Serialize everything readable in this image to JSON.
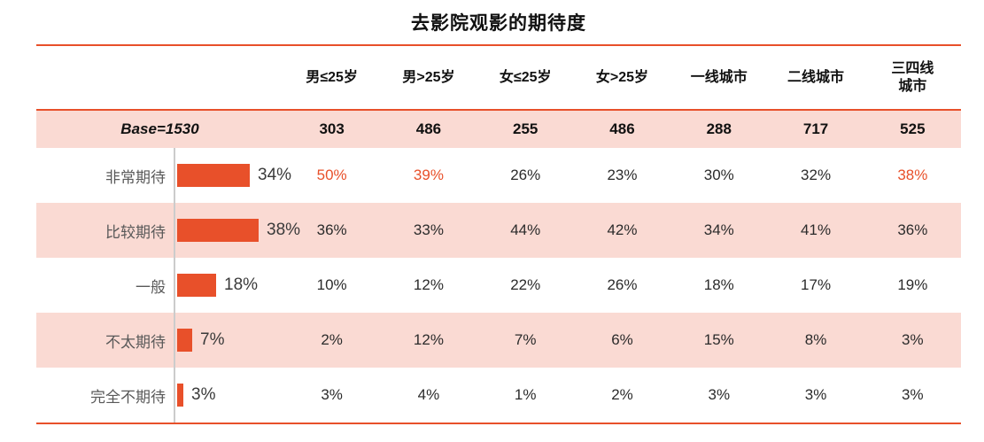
{
  "title": "去影院观影的期待度",
  "colors": {
    "accent": "#E8502A",
    "row_highlight_bg": "#FADAD3",
    "axis_line": "#CCCCCC",
    "label_gray": "#595959",
    "text_dark": "#111111"
  },
  "chart_data": {
    "type": "bar",
    "title": "去影院观影的期待度",
    "orientation": "horizontal",
    "grid": false,
    "legend": false,
    "columns": [
      "男≤25岁",
      "男>25岁",
      "女≤25岁",
      "女>25岁",
      "一线城市",
      "二线城市",
      "三四线城市"
    ],
    "base": {
      "label": "Base=1530",
      "values": [
        "303",
        "486",
        "255",
        "486",
        "288",
        "717",
        "525"
      ]
    },
    "categories": [
      "非常期待",
      "比较期待",
      "一般",
      "不太期待",
      "完全不期待"
    ],
    "overall_values_percent": [
      34,
      38,
      18,
      7,
      3
    ],
    "rows": [
      {
        "label": "非常期待",
        "bar_percent": 34,
        "bar_label": "34%",
        "values": [
          "50%",
          "39%",
          "26%",
          "23%",
          "30%",
          "32%",
          "38%"
        ],
        "highlights": [
          true,
          true,
          false,
          false,
          false,
          false,
          true
        ]
      },
      {
        "label": "比较期待",
        "bar_percent": 38,
        "bar_label": "38%",
        "values": [
          "36%",
          "33%",
          "44%",
          "42%",
          "34%",
          "41%",
          "36%"
        ]
      },
      {
        "label": "一般",
        "bar_percent": 18,
        "bar_label": "18%",
        "values": [
          "10%",
          "12%",
          "22%",
          "26%",
          "18%",
          "17%",
          "19%"
        ]
      },
      {
        "label": "不太期待",
        "bar_percent": 7,
        "bar_label": "7%",
        "values": [
          "2%",
          "12%",
          "7%",
          "6%",
          "15%",
          "8%",
          "3%"
        ]
      },
      {
        "label": "完全不期待",
        "bar_percent": 3,
        "bar_label": "3%",
        "values": [
          "3%",
          "4%",
          "1%",
          "2%",
          "3%",
          "3%",
          "3%"
        ]
      }
    ]
  }
}
